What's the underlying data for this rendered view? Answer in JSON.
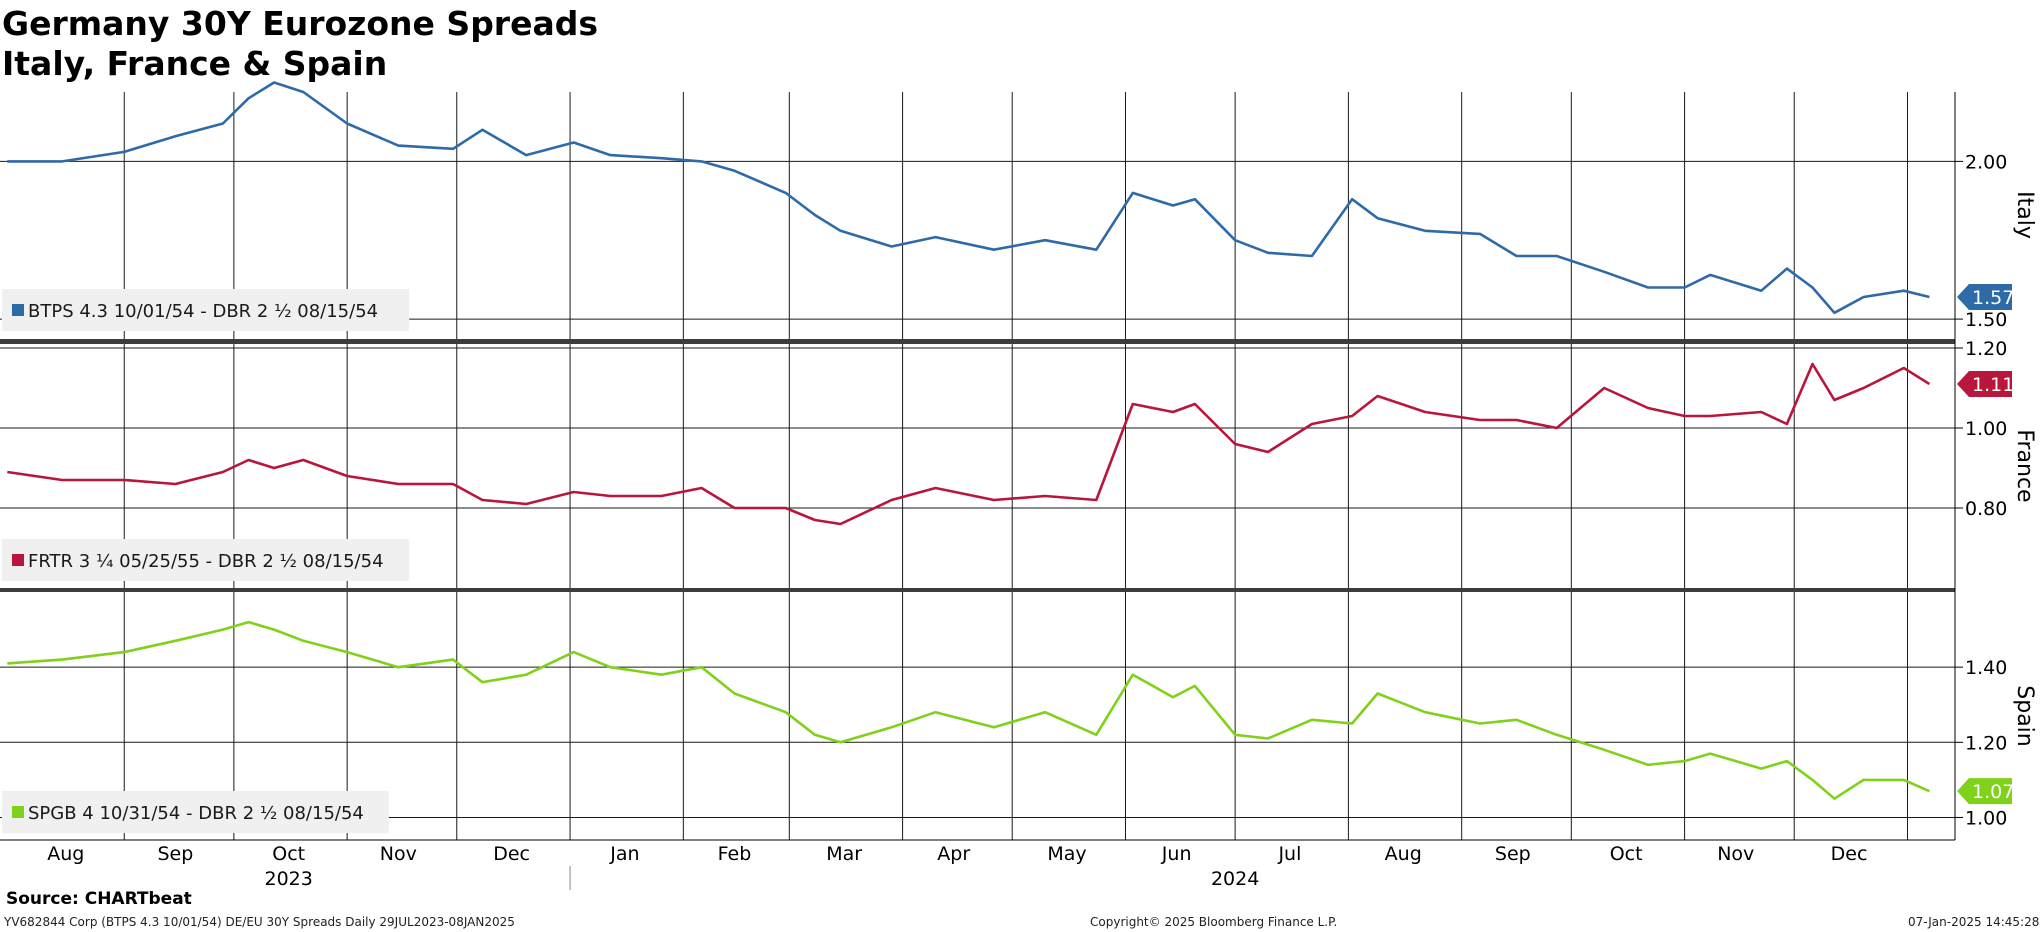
{
  "header": {
    "title_line1": "Germany 30Y Eurozone Spreads",
    "title_line2": "Italy, France & Spain"
  },
  "footer": {
    "source": "Source: CHARTbeat",
    "security": "YV682844 Corp (BTPS 4.3 10/01/54) DE/EU 30Y Spreads  Daily 29JUL2023-08JAN2025",
    "copyright": "Copyright© 2025 Bloomberg Finance L.P.",
    "timestamp": "07-Jan-2025 14:45:28"
  },
  "chart_data": [
    {
      "type": "line",
      "panel_label": "Italy",
      "ylim": [
        1.44,
        2.22
      ],
      "yticks": [
        1.5,
        2.0
      ],
      "ytick_labels": [
        "1.50",
        "2.00"
      ],
      "last_value": 1.57,
      "last_value_label": "1.57",
      "series": [
        {
          "name": "BTPS 4.3 10/01/54 - DBR 2 ½ 08/15/54",
          "color": "#2f6aa8",
          "x": [
            "2023-07-31",
            "2023-08-15",
            "2023-09-01",
            "2023-09-15",
            "2023-09-28",
            "2023-10-05",
            "2023-10-12",
            "2023-10-20",
            "2023-11-01",
            "2023-11-15",
            "2023-11-30",
            "2023-12-08",
            "2023-12-20",
            "2024-01-02",
            "2024-01-12",
            "2024-01-26",
            "2024-02-06",
            "2024-02-15",
            "2024-02-29",
            "2024-03-08",
            "2024-03-15",
            "2024-03-29",
            "2024-04-10",
            "2024-04-26",
            "2024-05-10",
            "2024-05-24",
            "2024-06-03",
            "2024-06-14",
            "2024-06-20",
            "2024-07-01",
            "2024-07-10",
            "2024-07-22",
            "2024-08-02",
            "2024-08-09",
            "2024-08-22",
            "2024-09-06",
            "2024-09-16",
            "2024-09-27",
            "2024-10-10",
            "2024-10-22",
            "2024-11-01",
            "2024-11-08",
            "2024-11-22",
            "2024-11-29",
            "2024-12-06",
            "2024-12-12",
            "2024-12-20",
            "2024-12-31",
            "2025-01-07"
          ],
          "values": [
            2.0,
            2.0,
            2.03,
            2.08,
            2.12,
            2.2,
            2.25,
            2.22,
            2.12,
            2.05,
            2.04,
            2.1,
            2.02,
            2.06,
            2.02,
            2.01,
            2.0,
            1.97,
            1.9,
            1.83,
            1.78,
            1.73,
            1.76,
            1.72,
            1.75,
            1.72,
            1.9,
            1.86,
            1.88,
            1.75,
            1.71,
            1.7,
            1.88,
            1.82,
            1.78,
            1.77,
            1.7,
            1.7,
            1.65,
            1.6,
            1.6,
            1.64,
            1.59,
            1.66,
            1.6,
            1.52,
            1.57,
            1.59,
            1.57
          ]
        }
      ]
    },
    {
      "type": "line",
      "panel_label": "France",
      "ylim": [
        0.6,
        1.21
      ],
      "yticks": [
        0.8,
        1.0,
        1.2
      ],
      "ytick_labels": [
        "0.80",
        "1.00",
        "1.20"
      ],
      "last_value": 1.11,
      "last_value_label": "1.11",
      "series": [
        {
          "name": "FRTR 3 ¼ 05/25/55 - DBR 2 ½ 08/15/54",
          "color": "#b8163a",
          "x": [
            "2023-07-31",
            "2023-08-15",
            "2023-09-01",
            "2023-09-15",
            "2023-09-28",
            "2023-10-05",
            "2023-10-12",
            "2023-10-20",
            "2023-11-01",
            "2023-11-15",
            "2023-11-30",
            "2023-12-08",
            "2023-12-20",
            "2024-01-02",
            "2024-01-12",
            "2024-01-26",
            "2024-02-06",
            "2024-02-15",
            "2024-02-29",
            "2024-03-08",
            "2024-03-15",
            "2024-03-29",
            "2024-04-10",
            "2024-04-26",
            "2024-05-10",
            "2024-05-24",
            "2024-06-03",
            "2024-06-14",
            "2024-06-20",
            "2024-07-01",
            "2024-07-10",
            "2024-07-22",
            "2024-08-02",
            "2024-08-09",
            "2024-08-22",
            "2024-09-06",
            "2024-09-16",
            "2024-09-27",
            "2024-10-10",
            "2024-10-22",
            "2024-11-01",
            "2024-11-08",
            "2024-11-22",
            "2024-11-29",
            "2024-12-06",
            "2024-12-12",
            "2024-12-20",
            "2024-12-31",
            "2025-01-07"
          ],
          "values": [
            0.89,
            0.87,
            0.87,
            0.86,
            0.89,
            0.92,
            0.9,
            0.92,
            0.88,
            0.86,
            0.86,
            0.82,
            0.81,
            0.84,
            0.83,
            0.83,
            0.85,
            0.8,
            0.8,
            0.77,
            0.76,
            0.82,
            0.85,
            0.82,
            0.83,
            0.82,
            1.06,
            1.04,
            1.06,
            0.96,
            0.94,
            1.01,
            1.03,
            1.08,
            1.04,
            1.02,
            1.02,
            1.0,
            1.1,
            1.05,
            1.03,
            1.03,
            1.04,
            1.01,
            1.16,
            1.07,
            1.1,
            1.15,
            1.11
          ]
        }
      ]
    },
    {
      "type": "line",
      "panel_label": "Spain",
      "ylim": [
        0.94,
        1.6
      ],
      "yticks": [
        1.0,
        1.2,
        1.4
      ],
      "ytick_labels": [
        "1.00",
        "1.20",
        "1.40"
      ],
      "last_value": 1.07,
      "last_value_label": "1.07",
      "series": [
        {
          "name": "SPGB 4 10/31/54 - DBR 2 ½ 08/15/54",
          "color": "#7fd11b",
          "x": [
            "2023-07-31",
            "2023-08-15",
            "2023-09-01",
            "2023-09-15",
            "2023-09-28",
            "2023-10-05",
            "2023-10-12",
            "2023-10-20",
            "2023-11-01",
            "2023-11-15",
            "2023-11-30",
            "2023-12-08",
            "2023-12-20",
            "2024-01-02",
            "2024-01-12",
            "2024-01-26",
            "2024-02-06",
            "2024-02-15",
            "2024-02-29",
            "2024-03-08",
            "2024-03-15",
            "2024-03-29",
            "2024-04-10",
            "2024-04-26",
            "2024-05-10",
            "2024-05-24",
            "2024-06-03",
            "2024-06-14",
            "2024-06-20",
            "2024-07-01",
            "2024-07-10",
            "2024-07-22",
            "2024-08-02",
            "2024-08-09",
            "2024-08-22",
            "2024-09-06",
            "2024-09-16",
            "2024-09-27",
            "2024-10-10",
            "2024-10-22",
            "2024-11-01",
            "2024-11-08",
            "2024-11-22",
            "2024-11-29",
            "2024-12-06",
            "2024-12-12",
            "2024-12-20",
            "2024-12-31",
            "2025-01-07"
          ],
          "values": [
            1.41,
            1.42,
            1.44,
            1.47,
            1.5,
            1.52,
            1.5,
            1.47,
            1.44,
            1.4,
            1.42,
            1.36,
            1.38,
            1.44,
            1.4,
            1.38,
            1.4,
            1.33,
            1.28,
            1.22,
            1.2,
            1.24,
            1.28,
            1.24,
            1.28,
            1.22,
            1.38,
            1.32,
            1.35,
            1.22,
            1.21,
            1.26,
            1.25,
            1.33,
            1.28,
            1.25,
            1.26,
            1.22,
            1.18,
            1.14,
            1.15,
            1.17,
            1.13,
            1.15,
            1.1,
            1.05,
            1.1,
            1.1,
            1.07
          ]
        }
      ]
    }
  ],
  "xaxis": {
    "months": [
      {
        "label": "Aug",
        "date": "2023-08-16"
      },
      {
        "label": "Sep",
        "date": "2023-09-15"
      },
      {
        "label": "Oct",
        "date": "2023-10-16"
      },
      {
        "label": "Nov",
        "date": "2023-11-15"
      },
      {
        "label": "Dec",
        "date": "2023-12-16"
      },
      {
        "label": "Jan",
        "date": "2024-01-16"
      },
      {
        "label": "Feb",
        "date": "2024-02-15"
      },
      {
        "label": "Mar",
        "date": "2024-03-16"
      },
      {
        "label": "Apr",
        "date": "2024-04-15"
      },
      {
        "label": "May",
        "date": "2024-05-16"
      },
      {
        "label": "Jun",
        "date": "2024-06-15"
      },
      {
        "label": "Jul",
        "date": "2024-07-16"
      },
      {
        "label": "Aug",
        "date": "2024-08-16"
      },
      {
        "label": "Sep",
        "date": "2024-09-15"
      },
      {
        "label": "Oct",
        "date": "2024-10-16"
      },
      {
        "label": "Nov",
        "date": "2024-11-15"
      },
      {
        "label": "Dec",
        "date": "2024-12-16"
      }
    ],
    "gridlines": [
      "2023-09-01",
      "2023-10-01",
      "2023-11-01",
      "2023-12-01",
      "2024-01-01",
      "2024-02-01",
      "2024-03-01",
      "2024-04-01",
      "2024-05-01",
      "2024-06-01",
      "2024-07-01",
      "2024-08-01",
      "2024-09-01",
      "2024-10-01",
      "2024-11-01",
      "2024-12-01",
      "2025-01-01"
    ],
    "years": [
      {
        "label": "2023",
        "date": "2023-10-16"
      },
      {
        "label": "2024",
        "date": "2024-07-01"
      }
    ],
    "year_separator": "2024-01-01",
    "range": [
      "2023-07-29",
      "2025-01-14"
    ]
  }
}
